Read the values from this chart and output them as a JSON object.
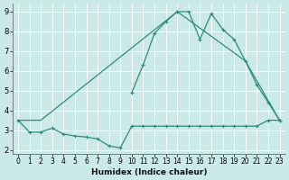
{
  "xlabel": "Humidex (Indice chaleur)",
  "bg_color": "#cce9e9",
  "grid_color": "#ffffff",
  "line_color": "#2e8b7a",
  "xlim": [
    -0.5,
    23.5
  ],
  "ylim": [
    1.8,
    9.4
  ],
  "yticks": [
    2,
    3,
    4,
    5,
    6,
    7,
    8,
    9
  ],
  "xticks": [
    0,
    1,
    2,
    3,
    4,
    5,
    6,
    7,
    8,
    9,
    10,
    11,
    12,
    13,
    14,
    15,
    16,
    17,
    18,
    19,
    20,
    21,
    22,
    23
  ],
  "line1_x": [
    0,
    1,
    2,
    3,
    4,
    5,
    6,
    7,
    8,
    9,
    10,
    11,
    12,
    13,
    14,
    15,
    16,
    17,
    18,
    19,
    20,
    21,
    22,
    23
  ],
  "line1_y": [
    3.5,
    2.9,
    2.9,
    3.1,
    2.8,
    2.7,
    2.65,
    2.55,
    2.2,
    2.1,
    3.2,
    3.2,
    3.2,
    3.2,
    3.2,
    3.2,
    3.2,
    3.2,
    3.2,
    3.2,
    3.2,
    3.2,
    3.5,
    3.5
  ],
  "line2_x": [
    0,
    2,
    14,
    20,
    23
  ],
  "line2_y": [
    3.5,
    3.5,
    9.0,
    6.5,
    3.5
  ],
  "line3_x": [
    10,
    11,
    12,
    13,
    14,
    15,
    16,
    17,
    18,
    19,
    20,
    21,
    22,
    23
  ],
  "line3_y": [
    4.9,
    6.3,
    7.9,
    8.5,
    9.0,
    9.0,
    7.6,
    8.9,
    8.1,
    7.6,
    6.5,
    5.3,
    4.4,
    3.5
  ],
  "tick_fontsize": 5.5,
  "xlabel_fontsize": 6.5
}
